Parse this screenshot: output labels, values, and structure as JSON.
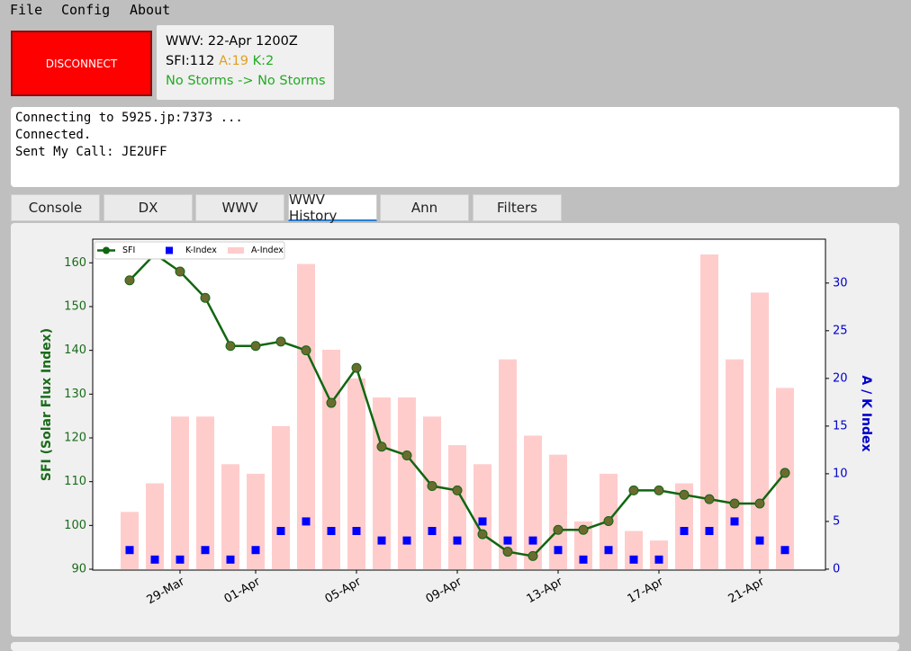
{
  "menu": [
    "File",
    "Config",
    "About"
  ],
  "button": "DISCONNECT",
  "wwv_panel": {
    "line1": "WWV: 22-Apr 1200Z",
    "sfi": "SFI:112",
    "a": "A:19",
    "k": "K:2",
    "storms": "No Storms -> No Storms"
  },
  "console": [
    "Connecting to 5925.jp:7373 ...",
    "Connected.",
    "Sent My Call: JE2UFF"
  ],
  "tabs": [
    "Console",
    "DX",
    "WWV",
    "WWV History",
    "Ann",
    "Filters"
  ],
  "active_tab": "WWV History",
  "chart_data": {
    "type": "combo",
    "categories": [
      null,
      null,
      "29-Mar",
      null,
      null,
      "01-Apr",
      null,
      null,
      null,
      "05-Apr",
      null,
      null,
      null,
      "09-Apr",
      null,
      null,
      null,
      "13-Apr",
      null,
      null,
      null,
      "17-Apr",
      null,
      null,
      null,
      "21-Apr",
      null
    ],
    "ylabel": "SFI (Solar Flux Index)",
    "y2label": "A / K Index",
    "ylim": [
      89.8,
      165.4
    ],
    "yticks": [
      90,
      100,
      110,
      120,
      130,
      140,
      150,
      160
    ],
    "y2lim": [
      -0.1,
      34.6
    ],
    "y2ticks": [
      0,
      5,
      10,
      15,
      20,
      25,
      30
    ],
    "legend": "upper left",
    "series": [
      {
        "name": "SFI",
        "type": "line",
        "color": "#116611",
        "marker_color": "#6b6b30",
        "values": [
          156,
          162,
          158,
          152,
          141,
          141,
          142,
          140,
          128,
          136,
          118,
          116,
          109,
          108,
          98,
          94,
          93,
          99,
          99,
          101,
          108,
          108,
          107,
          106,
          105,
          105,
          112
        ]
      },
      {
        "name": "K-Index",
        "type": "scatter",
        "axis": "y2",
        "color": "#0000ff",
        "values": [
          2,
          1,
          1,
          2,
          1,
          2,
          4,
          5,
          4,
          4,
          3,
          3,
          4,
          3,
          5,
          3,
          3,
          2,
          1,
          2,
          1,
          1,
          4,
          4,
          5,
          3,
          2
        ]
      },
      {
        "name": "A-Index",
        "type": "bar",
        "axis": "y2",
        "color": "#ffcccc",
        "values": [
          6,
          9,
          16,
          16,
          11,
          10,
          15,
          32,
          23,
          20,
          18,
          18,
          16,
          13,
          11,
          22,
          14,
          12,
          5,
          10,
          4,
          3,
          9,
          33,
          22,
          29,
          19
        ]
      }
    ]
  }
}
